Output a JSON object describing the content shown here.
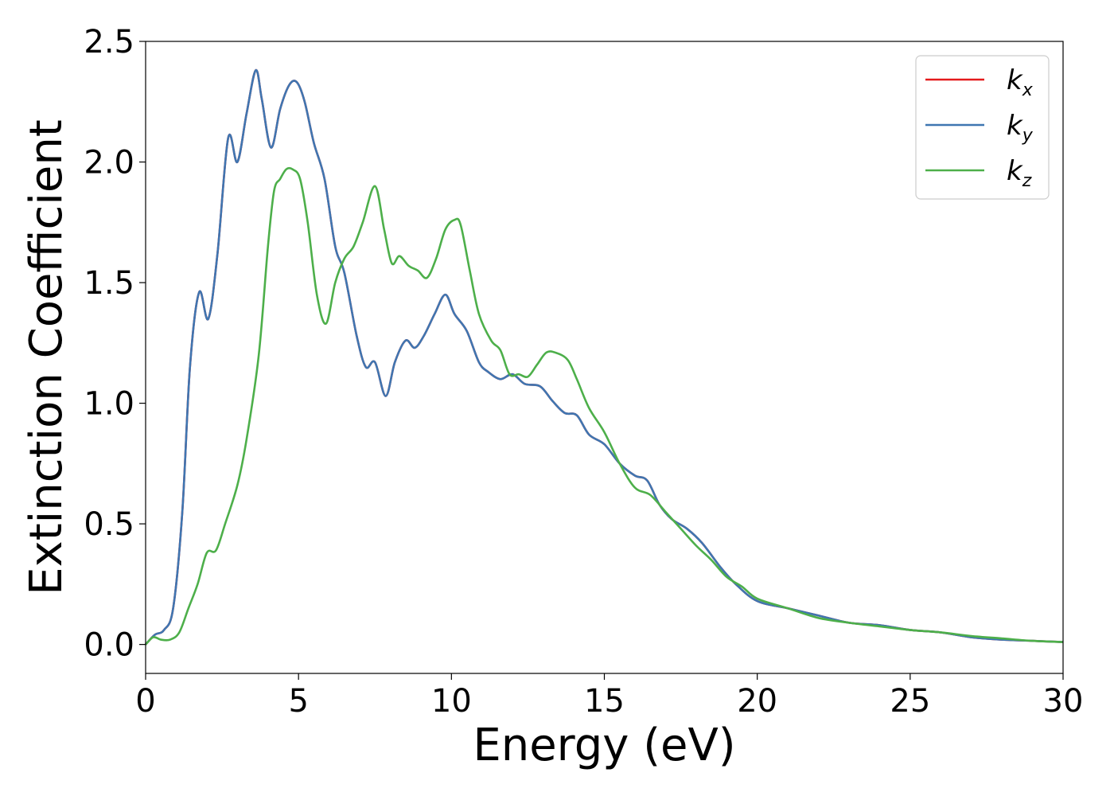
{
  "chart_data": {
    "type": "line",
    "xlabel": "Energy (eV)",
    "ylabel": "Extinction Coefficient",
    "xlim": [
      0,
      30
    ],
    "ylim": [
      -0.12,
      2.5
    ],
    "xticks": [
      0,
      5,
      10,
      15,
      20,
      25,
      30
    ],
    "xtick_labels": [
      "0",
      "5",
      "10",
      "15",
      "20",
      "25",
      "30"
    ],
    "yticks": [
      0.0,
      0.5,
      1.0,
      1.5,
      2.0,
      2.5
    ],
    "ytick_labels": [
      "0.0",
      "0.5",
      "1.0",
      "1.5",
      "2.0",
      "2.5"
    ],
    "grid": false,
    "legend_position": "top-right",
    "series": [
      {
        "name": "k",
        "subscript": "x",
        "color": "#e41a1c",
        "x": [
          0,
          0.3,
          0.6,
          0.9,
          1.2,
          1.45,
          1.75,
          2.05,
          2.35,
          2.7,
          3.0,
          3.3,
          3.6,
          3.8,
          4.1,
          4.4,
          4.7,
          4.95,
          5.2,
          5.5,
          5.85,
          6.2,
          6.5,
          6.9,
          7.2,
          7.5,
          7.85,
          8.15,
          8.5,
          8.8,
          9.1,
          9.45,
          9.8,
          10.1,
          10.5,
          10.9,
          11.2,
          11.6,
          12.0,
          12.4,
          12.9,
          13.3,
          13.7,
          14.1,
          14.5,
          15.0,
          15.5,
          16.0,
          16.4,
          16.8,
          17.2,
          17.7,
          18.2,
          18.8,
          19.3,
          20.0,
          21.0,
          22.0,
          23.0,
          24.0,
          25.0,
          26.0,
          27.0,
          28.0,
          29.0,
          30.0
        ],
        "y": [
          0.0,
          0.04,
          0.06,
          0.15,
          0.55,
          1.15,
          1.46,
          1.35,
          1.62,
          2.1,
          2.0,
          2.2,
          2.38,
          2.26,
          2.06,
          2.22,
          2.32,
          2.33,
          2.25,
          2.08,
          1.93,
          1.65,
          1.54,
          1.28,
          1.15,
          1.17,
          1.03,
          1.17,
          1.26,
          1.23,
          1.28,
          1.37,
          1.45,
          1.37,
          1.3,
          1.17,
          1.13,
          1.1,
          1.12,
          1.08,
          1.07,
          1.01,
          0.96,
          0.95,
          0.87,
          0.83,
          0.75,
          0.7,
          0.68,
          0.58,
          0.52,
          0.48,
          0.42,
          0.32,
          0.25,
          0.18,
          0.15,
          0.12,
          0.09,
          0.08,
          0.06,
          0.05,
          0.03,
          0.02,
          0.015,
          0.01
        ]
      },
      {
        "name": "k",
        "subscript": "y",
        "color": "#3f76b1",
        "x": [
          0,
          0.3,
          0.6,
          0.9,
          1.2,
          1.45,
          1.75,
          2.05,
          2.35,
          2.7,
          3.0,
          3.3,
          3.6,
          3.8,
          4.1,
          4.4,
          4.7,
          4.95,
          5.2,
          5.5,
          5.85,
          6.2,
          6.5,
          6.9,
          7.2,
          7.5,
          7.85,
          8.15,
          8.5,
          8.8,
          9.1,
          9.45,
          9.8,
          10.1,
          10.5,
          10.9,
          11.2,
          11.6,
          12.0,
          12.4,
          12.9,
          13.3,
          13.7,
          14.1,
          14.5,
          15.0,
          15.5,
          16.0,
          16.4,
          16.8,
          17.2,
          17.7,
          18.2,
          18.8,
          19.3,
          20.0,
          21.0,
          22.0,
          23.0,
          24.0,
          25.0,
          26.0,
          27.0,
          28.0,
          29.0,
          30.0
        ],
        "y": [
          0.0,
          0.04,
          0.06,
          0.15,
          0.55,
          1.15,
          1.46,
          1.35,
          1.62,
          2.1,
          2.0,
          2.2,
          2.38,
          2.26,
          2.06,
          2.22,
          2.32,
          2.33,
          2.25,
          2.08,
          1.93,
          1.65,
          1.54,
          1.28,
          1.15,
          1.17,
          1.03,
          1.17,
          1.26,
          1.23,
          1.28,
          1.37,
          1.45,
          1.37,
          1.3,
          1.17,
          1.13,
          1.1,
          1.12,
          1.08,
          1.07,
          1.01,
          0.96,
          0.95,
          0.87,
          0.83,
          0.75,
          0.7,
          0.68,
          0.58,
          0.52,
          0.48,
          0.42,
          0.32,
          0.25,
          0.18,
          0.15,
          0.12,
          0.09,
          0.08,
          0.06,
          0.05,
          0.03,
          0.02,
          0.015,
          0.01
        ]
      },
      {
        "name": "k",
        "subscript": "z",
        "color": "#4daf4a",
        "x": [
          0,
          0.25,
          0.5,
          0.8,
          1.1,
          1.4,
          1.7,
          2.0,
          2.3,
          2.6,
          3.0,
          3.3,
          3.7,
          4.0,
          4.2,
          4.4,
          4.6,
          4.8,
          5.05,
          5.3,
          5.6,
          5.9,
          6.2,
          6.5,
          6.8,
          7.1,
          7.5,
          7.8,
          8.05,
          8.3,
          8.6,
          8.9,
          9.2,
          9.5,
          9.8,
          10.1,
          10.3,
          10.6,
          10.9,
          11.3,
          11.6,
          11.9,
          12.2,
          12.5,
          12.8,
          13.1,
          13.4,
          13.8,
          14.1,
          14.5,
          15.0,
          15.5,
          16.0,
          16.5,
          17.0,
          17.5,
          18.0,
          18.5,
          19.0,
          19.5,
          20.0,
          21.0,
          22.0,
          23.0,
          24.0,
          25.0,
          26.0,
          27.0,
          28.0,
          29.0,
          30.0
        ],
        "y": [
          0.0,
          0.03,
          0.02,
          0.02,
          0.05,
          0.15,
          0.25,
          0.38,
          0.39,
          0.5,
          0.66,
          0.85,
          1.2,
          1.65,
          1.88,
          1.93,
          1.97,
          1.97,
          1.93,
          1.75,
          1.45,
          1.33,
          1.5,
          1.6,
          1.65,
          1.75,
          1.9,
          1.72,
          1.58,
          1.61,
          1.57,
          1.55,
          1.52,
          1.6,
          1.72,
          1.76,
          1.74,
          1.55,
          1.37,
          1.26,
          1.22,
          1.12,
          1.12,
          1.11,
          1.16,
          1.21,
          1.21,
          1.18,
          1.1,
          0.98,
          0.88,
          0.75,
          0.65,
          0.62,
          0.55,
          0.48,
          0.41,
          0.35,
          0.28,
          0.24,
          0.19,
          0.15,
          0.11,
          0.09,
          0.075,
          0.06,
          0.05,
          0.035,
          0.025,
          0.015,
          0.01
        ]
      }
    ]
  }
}
